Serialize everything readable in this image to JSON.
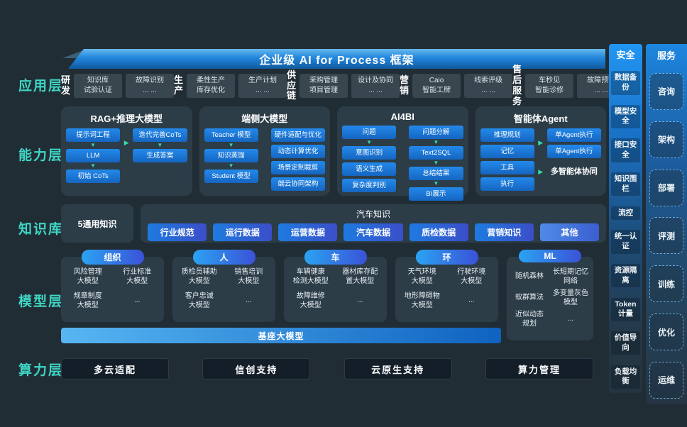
{
  "title": "企业级 AI for Process 框架",
  "layer_labels": {
    "app": "应用层",
    "capability": "能力层",
    "knowledge": "知识库",
    "model": "模型层",
    "compute": "算力层"
  },
  "app_row": {
    "domains": [
      {
        "label": "研发",
        "boxes": [
          [
            "知识库",
            "试验认证"
          ],
          [
            "故障识别",
            "... ..."
          ]
        ]
      },
      {
        "label": "生产",
        "boxes": [
          [
            "柔性生产",
            "库存优化"
          ],
          [
            "生产计划",
            "... ..."
          ]
        ]
      },
      {
        "label": "供应链",
        "boxes": [
          [
            "采购管理",
            "项目管理"
          ],
          [
            "设计及协同",
            "... ..."
          ]
        ]
      },
      {
        "label": "营销",
        "boxes": [
          [
            "Caio",
            "智能工牌"
          ],
          [
            "线索评级",
            "... ..."
          ]
        ]
      },
      {
        "label": "售后服务",
        "boxes": [
          [
            "车秒见",
            "智能诊修"
          ],
          [
            "故障预警",
            "... ..."
          ]
        ]
      }
    ]
  },
  "capability_row": {
    "panels": [
      {
        "title": "RAG+推理大模型",
        "mid_arrows": 1,
        "columns": [
          {
            "boxes": [
              "提示词工程",
              "LLM",
              "初始 CoTs"
            ],
            "arrow_after": [
              0,
              1
            ]
          },
          {
            "boxes": [
              "迭代完善CoTs",
              "生成答案"
            ],
            "arrow_after": [
              0
            ]
          }
        ]
      },
      {
        "title": "端侧大模型",
        "mid_arrows": 0,
        "columns": [
          {
            "boxes": [
              "Teacher 模型",
              "知识蒸馏",
              "Student 模型"
            ],
            "arrow_after": [
              0,
              1
            ]
          },
          {
            "boxes": [
              "硬件适配与优化",
              "动态计算优化",
              "场景定制裁剪",
              "端云协同架构"
            ],
            "arrow_after": []
          }
        ]
      },
      {
        "title": "AI4BI",
        "mid_arrows": 0,
        "columns": [
          {
            "boxes": [
              "问题",
              "意图识别",
              "语义生成",
              "复杂度判别"
            ],
            "arrow_after": [
              0
            ]
          },
          {
            "boxes": [
              "问题分解",
              "Text2SQL",
              "总结结果",
              "BI展示"
            ],
            "arrow_after": [
              0,
              1,
              2
            ]
          }
        ]
      },
      {
        "title": "智能体Agent",
        "mid_arrows": 2,
        "footer": "多智能体协同",
        "columns": [
          {
            "boxes": [
              "推理规划",
              "记忆",
              "工具",
              "执行"
            ],
            "arrow_after": []
          },
          {
            "boxes": [
              "单Agent执行",
              "单Agent执行"
            ],
            "arrow_after": []
          }
        ]
      }
    ]
  },
  "knowledge_row": {
    "general": "5通用知识",
    "domain_title": "汽车知识",
    "pills": [
      "行业规范",
      "运行数据",
      "运营数据",
      "汽车数据",
      "质检数据",
      "营销知识",
      "其他"
    ]
  },
  "model_row": {
    "groups": [
      {
        "header": "组织",
        "items": [
          "风险管理\n大模型",
          "行业标准\n大模型",
          "规章制度\n大模型",
          "..."
        ]
      },
      {
        "header": "人",
        "items": [
          "质检员辅助\n大模型",
          "销售培训\n大模型",
          "客户忠诚\n大模型",
          "..."
        ]
      },
      {
        "header": "车",
        "items": [
          "车辆健康\n检测大模型",
          "器材库存配\n置大模型",
          "故障维修\n大模型",
          "..."
        ]
      },
      {
        "header": "环",
        "items": [
          "天气环境\n大模型",
          "行驶环境\n大模型",
          "地形障碍物\n大模型",
          "..."
        ]
      },
      {
        "header": "ML",
        "items": [
          "随机森林",
          "长短期记忆\n网络",
          "蚁群算法",
          "多变量灰色\n模型",
          "近似动态\n规划",
          "..."
        ]
      }
    ],
    "base_bar": "基座大模型"
  },
  "compute_row": {
    "buttons": [
      "多云适配",
      "信创支持",
      "云原生支持",
      "算力管理"
    ]
  },
  "security_col": {
    "title": "安全",
    "items": [
      "数据备份",
      "模型安全",
      "接口安全",
      "知识围栏",
      "流控",
      "统一认证",
      "资源隔离",
      "Token计量",
      "价值导向",
      "负载均衡"
    ]
  },
  "service_col": {
    "title": "服务",
    "items": [
      "咨询",
      "架构",
      "部署",
      "评测",
      "训练",
      "优化",
      "运维"
    ]
  },
  "colors": {
    "accent_teal": "#3fd6c4",
    "accent_blue": "#1f7ae0",
    "arrow_green": "#35d9a6",
    "background": "#212d35"
  }
}
